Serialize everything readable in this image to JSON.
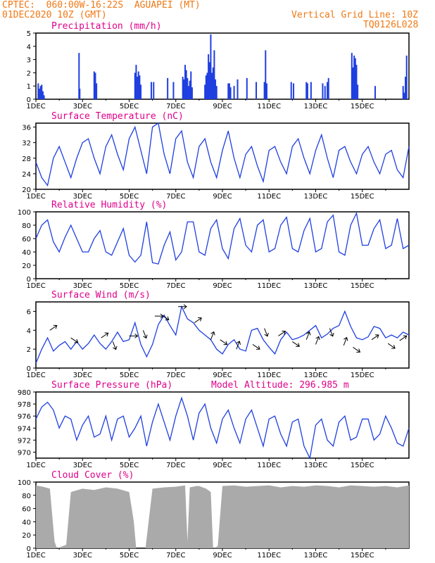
{
  "header": {
    "line1": "CPTEC:  060:00W-16:22S  AGUAPEI (MT)",
    "line2": "01DEC2020 10Z (GMT)",
    "vgrid": "Vertical Grid Line: 10Z",
    "code": "TQ0126L028"
  },
  "colors": {
    "header": "#f07814",
    "title": "#e0008a",
    "line": "#1f3fe0",
    "cloud": "#aaaaaa"
  },
  "chart_data": [
    {
      "type": "bar",
      "title": "Precipitation (mm/h)",
      "ylim": [
        0,
        5
      ],
      "yticks": [
        0,
        1,
        2,
        3,
        4,
        5
      ],
      "xticks": [
        "1DEC",
        "3DEC",
        "5DEC",
        "7DEC",
        "9DEC",
        "11DEC",
        "13DEC",
        "15DEC"
      ],
      "x": [
        0.1,
        0.15,
        0.2,
        0.25,
        0.3,
        0.35,
        1.85,
        1.88,
        2.5,
        2.55,
        2.6,
        4.25,
        4.3,
        4.35,
        4.4,
        4.45,
        4.5,
        4.95,
        5.05,
        5.65,
        5.9,
        6.3,
        6.35,
        6.4,
        6.45,
        6.5,
        6.55,
        6.6,
        6.65,
        6.7,
        7.25,
        7.3,
        7.35,
        7.4,
        7.45,
        7.5,
        7.55,
        7.6,
        7.65,
        7.7,
        7.75,
        8.25,
        8.3,
        8.35,
        8.5,
        8.65,
        9.05,
        9.45,
        9.8,
        9.85,
        9.9,
        10.95,
        11.05,
        11.6,
        11.65,
        11.8,
        12.3,
        12.4,
        12.5,
        12.55,
        13.55,
        13.6,
        13.65,
        13.7,
        13.75,
        13.8,
        14.55,
        15.75,
        15.8,
        15.85,
        15.9
      ],
      "values": [
        1.2,
        0.8,
        1.0,
        1.1,
        0.6,
        0.3,
        3.5,
        0.8,
        2.1,
        2.0,
        1.2,
        2.0,
        2.6,
        1.7,
        2.1,
        1.8,
        1.1,
        1.3,
        1.3,
        1.6,
        1.3,
        1.7,
        1.5,
        2.6,
        2.2,
        1.6,
        1.0,
        1.4,
        2.1,
        0.9,
        1.1,
        1.8,
        2.0,
        3.4,
        2.8,
        4.9,
        2.0,
        2.4,
        3.7,
        1.5,
        1.0,
        1.2,
        1.2,
        0.9,
        1.0,
        1.5,
        1.6,
        1.3,
        1.3,
        3.7,
        1.2,
        1.3,
        1.2,
        1.3,
        1.2,
        1.3,
        1.2,
        1.0,
        1.3,
        1.6,
        3.5,
        2.4,
        3.3,
        3.1,
        2.6,
        1.1,
        1.0,
        1.0,
        0.5,
        1.7,
        3.3
      ]
    },
    {
      "type": "line",
      "title": "Surface Temperature (nC)",
      "ylim": [
        20,
        37
      ],
      "yticks": [
        20,
        24,
        28,
        32,
        36
      ],
      "xticks": [
        "1DEC",
        "3DEC",
        "5DEC",
        "7DEC",
        "9DEC",
        "11DEC",
        "13DEC",
        "15DEC"
      ],
      "x": [
        0,
        0.25,
        0.5,
        0.75,
        1.0,
        1.25,
        1.5,
        1.75,
        2.0,
        2.25,
        2.5,
        2.75,
        3.0,
        3.25,
        3.5,
        3.75,
        4.0,
        4.25,
        4.5,
        4.75,
        5.0,
        5.25,
        5.5,
        5.75,
        6.0,
        6.25,
        6.5,
        6.75,
        7.0,
        7.25,
        7.5,
        7.75,
        8.0,
        8.25,
        8.5,
        8.75,
        9.0,
        9.25,
        9.5,
        9.75,
        10.0,
        10.25,
        10.5,
        10.75,
        11.0,
        11.25,
        11.5,
        11.75,
        12.0,
        12.25,
        12.5,
        12.75,
        13.0,
        13.25,
        13.5,
        13.75,
        14.0,
        14.25,
        14.5,
        14.75,
        15.0,
        15.25,
        15.5,
        15.75,
        16.0
      ],
      "values": [
        27,
        23,
        21,
        28,
        31,
        27,
        23,
        28,
        32,
        33,
        28,
        24,
        31,
        34,
        29,
        25,
        33,
        36,
        30,
        24,
        36,
        37,
        29,
        24,
        33,
        35,
        27,
        23,
        31,
        33,
        27,
        23,
        30,
        35,
        28,
        23,
        29,
        31,
        26,
        22,
        30,
        31,
        27,
        24,
        31,
        33,
        28,
        24,
        30,
        34,
        28,
        23,
        30,
        31,
        27,
        24,
        29,
        31,
        27,
        24,
        29,
        30,
        25,
        23,
        31
      ]
    },
    {
      "type": "line",
      "title": "Relative Humidity (%)",
      "ylim": [
        0,
        100
      ],
      "yticks": [
        0,
        20,
        40,
        60,
        80,
        100
      ],
      "xticks": [
        "1DEC",
        "3DEC",
        "5DEC",
        "7DEC",
        "9DEC",
        "11DEC",
        "13DEC",
        "15DEC"
      ],
      "x": [
        0,
        0.25,
        0.5,
        0.75,
        1.0,
        1.25,
        1.5,
        1.75,
        2.0,
        2.25,
        2.5,
        2.75,
        3.0,
        3.25,
        3.5,
        3.75,
        4.0,
        4.25,
        4.5,
        4.75,
        5.0,
        5.25,
        5.5,
        5.75,
        6.0,
        6.25,
        6.5,
        6.75,
        7.0,
        7.25,
        7.5,
        7.75,
        8.0,
        8.25,
        8.5,
        8.75,
        9.0,
        9.25,
        9.5,
        9.75,
        10.0,
        10.25,
        10.5,
        10.75,
        11.0,
        11.25,
        11.5,
        11.75,
        12.0,
        12.25,
        12.5,
        12.75,
        13.0,
        13.25,
        13.5,
        13.75,
        14.0,
        14.25,
        14.5,
        14.75,
        15.0,
        15.25,
        15.5,
        15.75,
        16.0
      ],
      "values": [
        60,
        80,
        88,
        55,
        40,
        62,
        80,
        60,
        40,
        40,
        60,
        72,
        40,
        35,
        55,
        75,
        35,
        25,
        35,
        85,
        24,
        22,
        50,
        70,
        28,
        40,
        85,
        85,
        40,
        35,
        75,
        88,
        45,
        30,
        75,
        90,
        50,
        40,
        80,
        88,
        40,
        45,
        80,
        92,
        45,
        40,
        72,
        90,
        40,
        45,
        85,
        95,
        40,
        35,
        80,
        98,
        50,
        50,
        75,
        88,
        45,
        50,
        90,
        45,
        50
      ]
    },
    {
      "type": "line",
      "title": "Surface Wind (m/s)",
      "ylim": [
        0,
        7
      ],
      "yticks": [
        0,
        2,
        4,
        6
      ],
      "xticks": [
        "1DEC",
        "3DEC",
        "5DEC",
        "7DEC",
        "9DEC",
        "11DEC",
        "13DEC",
        "15DEC"
      ],
      "x": [
        0,
        0.25,
        0.5,
        0.75,
        1.0,
        1.25,
        1.5,
        1.75,
        2.0,
        2.25,
        2.5,
        2.75,
        3.0,
        3.25,
        3.5,
        3.75,
        4.0,
        4.25,
        4.5,
        4.75,
        5.0,
        5.25,
        5.5,
        5.75,
        6.0,
        6.25,
        6.5,
        6.75,
        7.0,
        7.25,
        7.5,
        7.75,
        8.0,
        8.25,
        8.5,
        8.75,
        9.0,
        9.25,
        9.5,
        9.75,
        10.0,
        10.25,
        10.5,
        10.75,
        11.0,
        11.25,
        11.5,
        11.75,
        12.0,
        12.25,
        12.5,
        12.75,
        13.0,
        13.25,
        13.5,
        13.75,
        14.0,
        14.25,
        14.5,
        14.75,
        15.0,
        15.25,
        15.5,
        15.75,
        16.0
      ],
      "values": [
        0.5,
        2.0,
        3.2,
        1.8,
        2.4,
        2.8,
        2.0,
        2.8,
        2.0,
        2.6,
        3.5,
        2.6,
        2.0,
        2.8,
        3.8,
        2.8,
        3.0,
        4.8,
        2.5,
        1.2,
        2.5,
        4.6,
        5.6,
        4.5,
        3.5,
        6.5,
        5.2,
        4.8,
        4.0,
        3.5,
        3.0,
        2.0,
        1.5,
        2.5,
        3.0,
        2.0,
        1.8,
        4.0,
        4.2,
        3.0,
        2.2,
        1.5,
        3.0,
        3.8,
        3.0,
        3.2,
        3.5,
        4.0,
        4.5,
        3.2,
        3.6,
        4.2,
        4.5,
        6.0,
        4.4,
        3.2,
        3.0,
        3.3,
        4.4,
        4.2,
        3.2,
        3.5,
        3.2,
        3.8,
        3.5
      ],
      "vectors": [
        [
          0.6,
          4.0,
          1
        ],
        [
          1.5,
          3.2,
          -1
        ],
        [
          2.8,
          3.2,
          1
        ],
        [
          3.3,
          2.8,
          -2
        ],
        [
          4.0,
          3.4,
          0
        ],
        [
          4.6,
          4.0,
          -2
        ],
        [
          5.1,
          5.5,
          0
        ],
        [
          5.4,
          5.6,
          -1
        ],
        [
          6.1,
          6.5,
          0
        ],
        [
          6.8,
          4.8,
          1
        ],
        [
          7.5,
          3.0,
          2
        ],
        [
          7.9,
          3.0,
          -1
        ],
        [
          8.6,
          2.0,
          2
        ],
        [
          9.3,
          2.5,
          -1
        ],
        [
          9.8,
          4.2,
          -2
        ],
        [
          10.4,
          3.4,
          1
        ],
        [
          11.0,
          2.8,
          -1
        ],
        [
          11.6,
          3.0,
          2
        ],
        [
          12.0,
          2.5,
          2
        ],
        [
          12.6,
          4.2,
          -2
        ],
        [
          13.2,
          2.4,
          2
        ],
        [
          13.6,
          2.2,
          -1
        ],
        [
          14.4,
          3.0,
          1
        ],
        [
          15.1,
          2.6,
          -1
        ],
        [
          15.6,
          2.9,
          1
        ]
      ]
    },
    {
      "type": "line",
      "title": "Surface Pressure (hPa)",
      "annotation": "Model Altitude: 296.985 m",
      "ylim": [
        969,
        980
      ],
      "yticks": [
        970,
        972,
        974,
        976,
        978,
        980
      ],
      "xticks": [
        "1DEC",
        "3DEC",
        "5DEC",
        "7DEC",
        "9DEC",
        "11DEC",
        "13DEC",
        "15DEC"
      ],
      "x": [
        0,
        0.25,
        0.5,
        0.75,
        1.0,
        1.25,
        1.5,
        1.75,
        2.0,
        2.25,
        2.5,
        2.75,
        3.0,
        3.25,
        3.5,
        3.75,
        4.0,
        4.25,
        4.5,
        4.75,
        5.0,
        5.25,
        5.5,
        5.75,
        6.0,
        6.25,
        6.5,
        6.75,
        7.0,
        7.25,
        7.5,
        7.75,
        8.0,
        8.25,
        8.5,
        8.75,
        9.0,
        9.25,
        9.5,
        9.75,
        10.0,
        10.25,
        10.5,
        10.75,
        11.0,
        11.25,
        11.5,
        11.75,
        12.0,
        12.25,
        12.5,
        12.75,
        13.0,
        13.25,
        13.5,
        13.75,
        14.0,
        14.25,
        14.5,
        14.75,
        15.0,
        15.25,
        15.5,
        15.75,
        16.0
      ],
      "values": [
        975.5,
        977.5,
        978.3,
        977.0,
        974.0,
        976.0,
        975.5,
        972.0,
        974.5,
        976.0,
        972.5,
        973.0,
        976.0,
        972.0,
        975.5,
        976.0,
        972.5,
        974.0,
        976.0,
        971.0,
        975.0,
        978.0,
        975.0,
        972.0,
        976.0,
        979.0,
        976.0,
        972.0,
        976.5,
        978.0,
        974.0,
        971.5,
        975.5,
        977.0,
        974.0,
        971.5,
        975.5,
        977.0,
        974.0,
        971.0,
        975.5,
        976.0,
        973.0,
        971.0,
        975.0,
        975.5,
        971.0,
        969.0,
        974.5,
        975.5,
        972.0,
        971.0,
        975.0,
        976.0,
        972.0,
        972.5,
        975.5,
        975.5,
        972.0,
        973.0,
        976.0,
        974.0,
        971.5,
        971.0,
        974.0
      ]
    },
    {
      "type": "area",
      "title": "Cloud Cover (%)",
      "ylim": [
        0,
        100
      ],
      "yticks": [
        0,
        20,
        40,
        60,
        80,
        100
      ],
      "xticks": [
        "1DEC",
        "3DEC",
        "5DEC",
        "7DEC",
        "9DEC",
        "11DEC",
        "13DEC",
        "15DEC"
      ],
      "x": [
        0,
        0.3,
        0.6,
        0.8,
        0.9,
        1.3,
        1.5,
        2.0,
        2.5,
        3.0,
        3.5,
        4.0,
        4.2,
        4.3,
        4.5,
        4.7,
        5.0,
        5.5,
        6.0,
        6.4,
        6.5,
        6.6,
        6.9,
        7.0,
        7.3,
        7.5,
        7.6,
        7.8,
        8.0,
        8.5,
        9.0,
        9.5,
        10.0,
        10.5,
        11.0,
        11.5,
        12.0,
        12.5,
        13.0,
        13.5,
        14.0,
        14.5,
        15.0,
        15.5,
        16.0
      ],
      "values": [
        95,
        93,
        90,
        10,
        0,
        5,
        85,
        90,
        88,
        92,
        90,
        85,
        40,
        0,
        0,
        0,
        90,
        92,
        93,
        95,
        10,
        92,
        94,
        94,
        90,
        85,
        0,
        3,
        94,
        95,
        93,
        94,
        95,
        92,
        94,
        93,
        95,
        94,
        92,
        95,
        94,
        93,
        94,
        92,
        95
      ]
    }
  ]
}
